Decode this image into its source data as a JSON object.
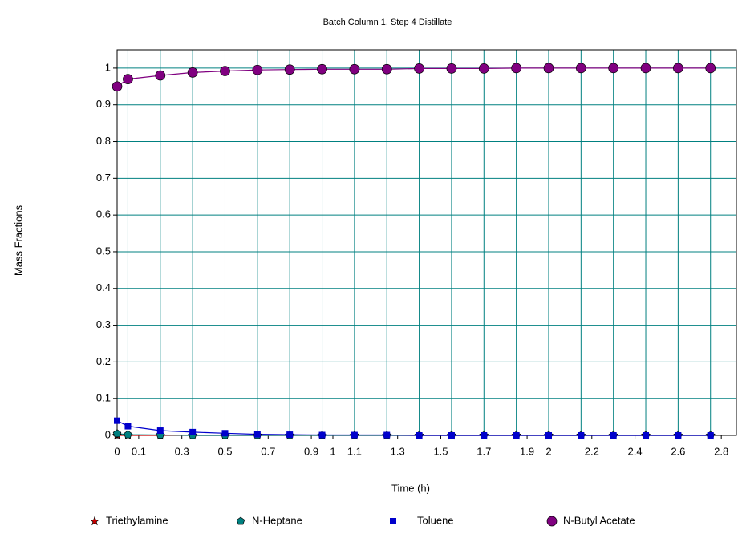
{
  "chart_data": {
    "type": "line",
    "title": "Batch Column 1, Step 4 Distillate",
    "xlabel": "Time (h)",
    "ylabel": "Mass Fractions",
    "x": [
      0,
      0.05,
      0.2,
      0.35,
      0.5,
      0.65,
      0.8,
      0.95,
      1.1,
      1.25,
      1.4,
      1.55,
      1.7,
      1.85,
      2.0,
      2.15,
      2.3,
      2.45,
      2.6,
      2.75
    ],
    "series": [
      {
        "name": "Triethylamine",
        "color": "#cc0000",
        "marker": "star",
        "values": [
          0,
          0,
          0,
          0,
          0,
          0,
          0,
          0,
          0,
          0,
          0,
          0,
          0,
          0,
          0,
          0,
          0,
          0,
          0,
          0
        ]
      },
      {
        "name": "N-Heptane",
        "color": "#008080",
        "marker": "pentagon",
        "values": [
          0.005,
          0.002,
          0.001,
          0,
          0,
          0,
          0,
          0,
          0,
          0,
          0,
          0,
          0,
          0,
          0,
          0,
          0,
          0,
          0,
          0
        ]
      },
      {
        "name": "Toluene",
        "color": "#0000cc",
        "marker": "square",
        "values": [
          0.04,
          0.025,
          0.013,
          0.009,
          0.006,
          0.003,
          0.002,
          0.001,
          0.001,
          0.001,
          0,
          0,
          0,
          0,
          0,
          0,
          0,
          0,
          0,
          0
        ]
      },
      {
        "name": "N-Butyl Acetate",
        "color": "#800080",
        "marker": "circle",
        "values": [
          0.95,
          0.97,
          0.98,
          0.988,
          0.992,
          0.995,
          0.996,
          0.997,
          0.997,
          0.997,
          0.999,
          0.999,
          0.999,
          1,
          1,
          1,
          1,
          1,
          1,
          1
        ]
      }
    ],
    "xlim": [
      0,
      2.87
    ],
    "ylim": [
      0,
      1.05
    ],
    "xticks": [
      0,
      0.1,
      0.3,
      0.5,
      0.7,
      0.9,
      1,
      1.1,
      1.3,
      1.5,
      1.7,
      1.9,
      2,
      2.2,
      2.4,
      2.6,
      2.8
    ],
    "yticks": [
      0,
      0.1,
      0.2,
      0.3,
      0.4,
      0.5,
      0.6,
      0.7,
      0.8,
      0.9,
      1
    ],
    "grid": true,
    "grid_color": "#008080",
    "legend": "bottom"
  }
}
